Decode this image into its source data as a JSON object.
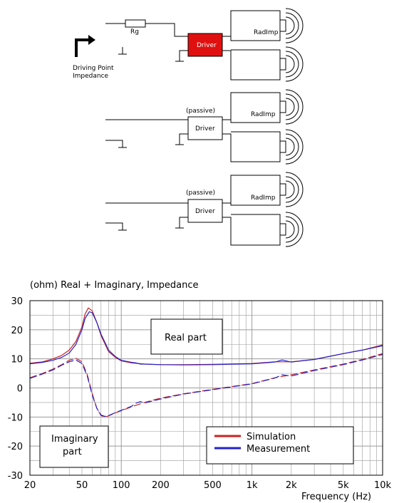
{
  "diagram": {
    "rg_label": "Rg",
    "driving_point_line1": "Driving Point",
    "driving_point_line2": "Impedance",
    "driver_label": "Driver",
    "passive_label": "(passive)",
    "radimp_label": "RadImp",
    "colors": {
      "active_driver": "#e01010",
      "line": "#000000"
    }
  },
  "chart_data": {
    "type": "line",
    "title": "(ohm)   Real + Imaginary, Impedance",
    "xlabel": "Frequency  (Hz)",
    "x_scale": "log",
    "xlim": [
      20,
      10000
    ],
    "ylim": [
      -30,
      30
    ],
    "x_ticks": [
      20,
      50,
      100,
      200,
      500,
      1000,
      2000,
      5000,
      10000
    ],
    "x_tick_labels": [
      "20",
      "50",
      "100",
      "200",
      "500",
      "1k",
      "2k",
      "5k",
      "10k"
    ],
    "y_ticks": [
      30,
      20,
      10,
      0,
      -10,
      -20,
      -30
    ],
    "y_tick_labels": [
      "30",
      "20",
      "10",
      "0",
      "-10",
      "-20",
      "-30"
    ],
    "grid": true,
    "annotations": {
      "real": "Real part",
      "imag_line1": "Imaginary",
      "imag_line2": "part"
    },
    "legend": {
      "position": "bottom-right",
      "entries": [
        {
          "name": "Simulation",
          "color": "#cc2222"
        },
        {
          "name": "Measurement",
          "color": "#2222cc"
        }
      ]
    },
    "series": [
      {
        "name": "Simulation",
        "part": "real",
        "color": "#cc2222",
        "style": "solid",
        "x": [
          20,
          25,
          30,
          35,
          40,
          45,
          50,
          53,
          56,
          60,
          65,
          70,
          80,
          90,
          100,
          120,
          150,
          200,
          300,
          500,
          1000,
          1500,
          2000,
          3000,
          5000,
          7000,
          10000
        ],
        "y": [
          8.5,
          9.0,
          10.0,
          11.2,
          13.0,
          16.0,
          21.0,
          25.5,
          27.5,
          26.5,
          22.5,
          18.0,
          12.5,
          10.5,
          9.3,
          8.6,
          8.2,
          8.0,
          8.0,
          8.1,
          8.4,
          9.0,
          9.0,
          9.8,
          11.8,
          13.0,
          14.8
        ]
      },
      {
        "name": "Measurement",
        "part": "real",
        "color": "#2222cc",
        "style": "solid",
        "x": [
          20,
          25,
          30,
          35,
          40,
          45,
          50,
          53,
          57,
          60,
          65,
          70,
          80,
          90,
          100,
          120,
          130,
          140,
          150,
          200,
          300,
          500,
          1000,
          1500,
          1700,
          2000,
          3000,
          5000,
          7000,
          10000
        ],
        "y": [
          8.3,
          8.8,
          9.5,
          10.5,
          12.0,
          15.0,
          20.0,
          24.0,
          26.2,
          25.8,
          22.5,
          18.5,
          13.0,
          10.8,
          9.5,
          8.8,
          8.6,
          8.2,
          8.2,
          8.0,
          7.9,
          8.0,
          8.3,
          8.9,
          9.6,
          8.9,
          9.8,
          11.8,
          13.0,
          14.5
        ]
      },
      {
        "name": "Simulation",
        "part": "imaginary",
        "color": "#cc2222",
        "style": "dashed",
        "x": [
          20,
          25,
          30,
          35,
          40,
          45,
          50,
          55,
          60,
          65,
          70,
          75,
          80,
          90,
          100,
          120,
          150,
          200,
          300,
          500,
          1000,
          1500,
          2000,
          3000,
          5000,
          7000,
          10000
        ],
        "y": [
          3.5,
          5.0,
          6.5,
          8.0,
          9.5,
          10.2,
          9.0,
          4.5,
          -2.0,
          -7.0,
          -9.5,
          -10.0,
          -9.6,
          -8.6,
          -7.8,
          -6.5,
          -5.0,
          -3.5,
          -2.0,
          -0.5,
          1.5,
          3.5,
          4.5,
          6.2,
          8.2,
          9.8,
          11.8
        ]
      },
      {
        "name": "Measurement",
        "part": "imaginary",
        "color": "#2222cc",
        "style": "dashed",
        "x": [
          20,
          25,
          30,
          35,
          40,
          45,
          50,
          55,
          60,
          65,
          70,
          75,
          80,
          90,
          100,
          120,
          130,
          140,
          150,
          200,
          300,
          500,
          1000,
          1500,
          1700,
          2000,
          3000,
          5000,
          7000,
          10000
        ],
        "y": [
          3.3,
          4.8,
          6.2,
          7.8,
          9.0,
          9.6,
          8.4,
          4.0,
          -2.5,
          -7.0,
          -9.3,
          -9.8,
          -9.5,
          -8.5,
          -7.7,
          -6.3,
          -5.2,
          -4.7,
          -5.2,
          -3.8,
          -2.1,
          -0.6,
          1.4,
          3.4,
          4.5,
          4.1,
          6.0,
          8.0,
          9.6,
          11.5
        ]
      }
    ]
  }
}
